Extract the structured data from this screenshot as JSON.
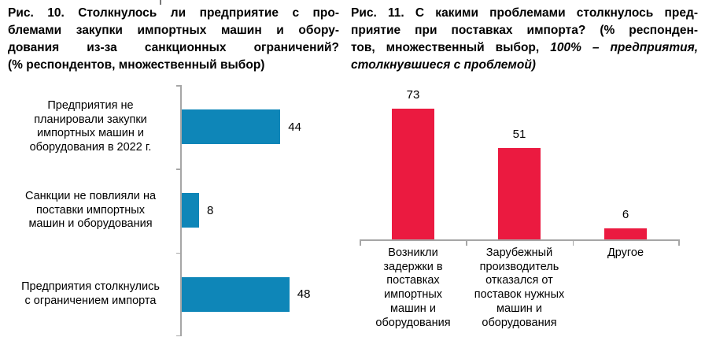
{
  "figure10": {
    "title_lines": [
      "Рис. 10. Столкнулось ли предприятие с про-",
      "блемами закупки импортных машин и обору-",
      "дования из-за санкционных ограничений?",
      "(% респондентов, множественный выбор)"
    ],
    "labels_display": [
      [
        "Предприятия не",
        "планировали закупки",
        "импортных машин и",
        "оборудования в 2022 г."
      ],
      [
        "Санкции не повлияли на",
        "поставки импортных",
        "машин и оборудования"
      ],
      [
        "Предприятия столкнулись",
        "с ограничением импорта"
      ]
    ],
    "bar_color": "#0E86B8",
    "axis_color": "#A6A6A6"
  },
  "figure11": {
    "title_lines": [
      "Рис. 11. С какими проблемами столкнулось пред-",
      "приятие при поставках импорта? (% респонден-"
    ],
    "title_line3_normal": "тов, множественный выбор, ",
    "title_line3_italic": "100% – предприятия,",
    "title_line4_italic": "столкнувшиеся с проблемой)",
    "labels_display": [
      [
        "Возникли",
        "задержки в",
        "поставках",
        "импортных",
        "машин и",
        "оборудования"
      ],
      [
        "Зарубежный",
        "производитель",
        "отказался от",
        "поставок нужных",
        "машин и",
        "оборудования"
      ],
      [
        "Другое"
      ]
    ],
    "bar_color": "#EB1A40",
    "axis_color": "#A6A6A6"
  },
  "chart_data": [
    {
      "type": "bar",
      "orientation": "horizontal",
      "title": "Рис. 10. Столкнулось ли предприятие с проблемами закупки импортных машин и оборудования из-за санкционных ограничений? (% респондентов, множественный выбор)",
      "categories": [
        "Предприятия не планировали закупки импортных машин и оборудования в 2022 г.",
        "Санкции не повлияли на поставки импортных машин и оборудования",
        "Предприятия столкнулись с ограничением импорта"
      ],
      "values": [
        44,
        8,
        48
      ],
      "data_labels": [
        "44",
        "8",
        "48"
      ],
      "bar_color": "#0E86B8",
      "xlim": [
        0,
        70
      ],
      "grid": false,
      "legend": "none"
    },
    {
      "type": "bar",
      "orientation": "vertical",
      "title": "Рис. 11. С какими проблемами столкнулось предприятие при поставках импорта? (% респондентов, множественный выбор, 100% – предприятия, столкнувшиеся с проблемой)",
      "categories": [
        "Возникли задержки в поставках импортных машин и оборудования",
        "Зарубежный производитель отказался от поставок нужных машин и оборудования",
        "Другое"
      ],
      "values": [
        73,
        51,
        6
      ],
      "data_labels": [
        "73",
        "51",
        "6"
      ],
      "bar_color": "#EB1A40",
      "ylim": [
        0,
        84
      ],
      "grid": false,
      "legend": "none"
    }
  ]
}
